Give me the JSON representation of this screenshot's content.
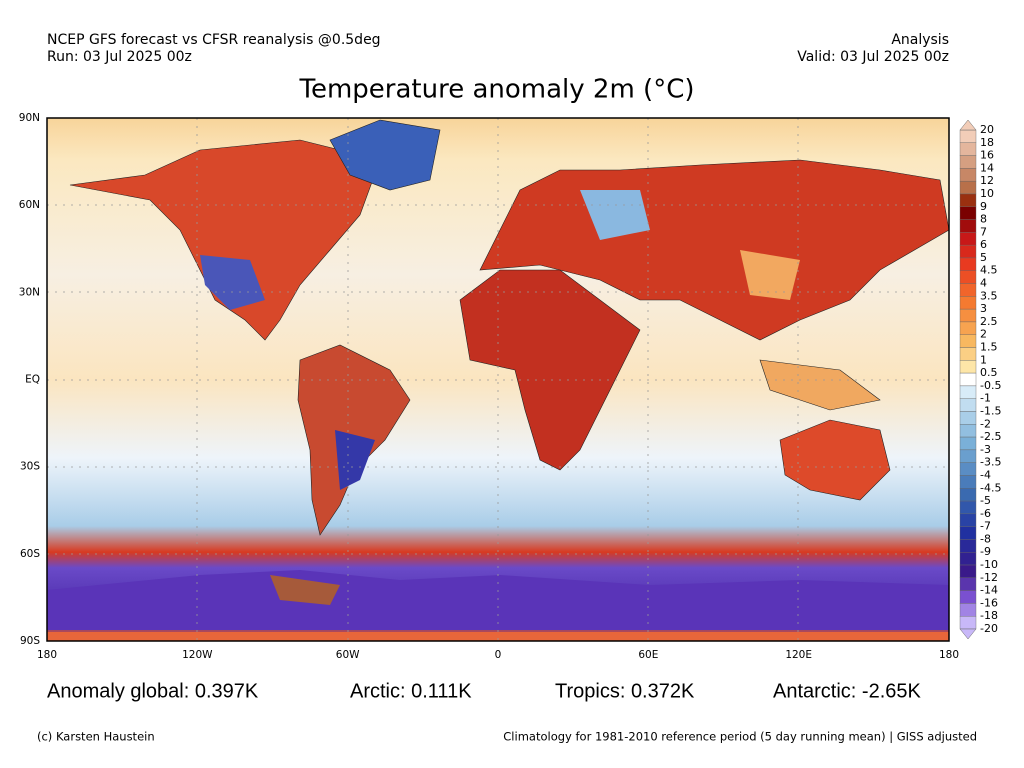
{
  "header": {
    "left": [
      "NCEP GFS forecast vs CFSR reanalysis @0.5deg",
      "Run: 03 Jul 2025 00z"
    ],
    "right": [
      "Analysis",
      "Valid: 03 Jul 2025 00z"
    ]
  },
  "title": "Temperature anomaly 2m (°C)",
  "lat_labels": [
    "90N",
    "60N",
    "30N",
    "EQ",
    "30S",
    "60S",
    "90S"
  ],
  "lon_labels": [
    "180",
    "120W",
    "60W",
    "0",
    "60E",
    "120E",
    "180"
  ],
  "colorbar": {
    "labels": [
      "20",
      "18",
      "16",
      "14",
      "12",
      "10",
      "9",
      "8",
      "7",
      "6",
      "5",
      "4.5",
      "4",
      "3.5",
      "3",
      "2.5",
      "2",
      "1.5",
      "1",
      "0.5",
      "-0.5",
      "-1",
      "-1.5",
      "-2",
      "-2.5",
      "-3",
      "-3.5",
      "-4",
      "-4.5",
      "-5",
      "-6",
      "-7",
      "-8",
      "-9",
      "-10",
      "-12",
      "-14",
      "-16",
      "-18",
      "-20"
    ]
  },
  "stats": [
    "Anomaly global: 0.397K",
    "Arctic: 0.111K",
    "Tropics: 0.372K",
    "Antarctic: -2.65K"
  ],
  "footer": {
    "left": "(c) Karsten Haustein",
    "right": "Climatology for 1981-2010 reference period (5 day running mean) | GISS adjusted"
  }
}
